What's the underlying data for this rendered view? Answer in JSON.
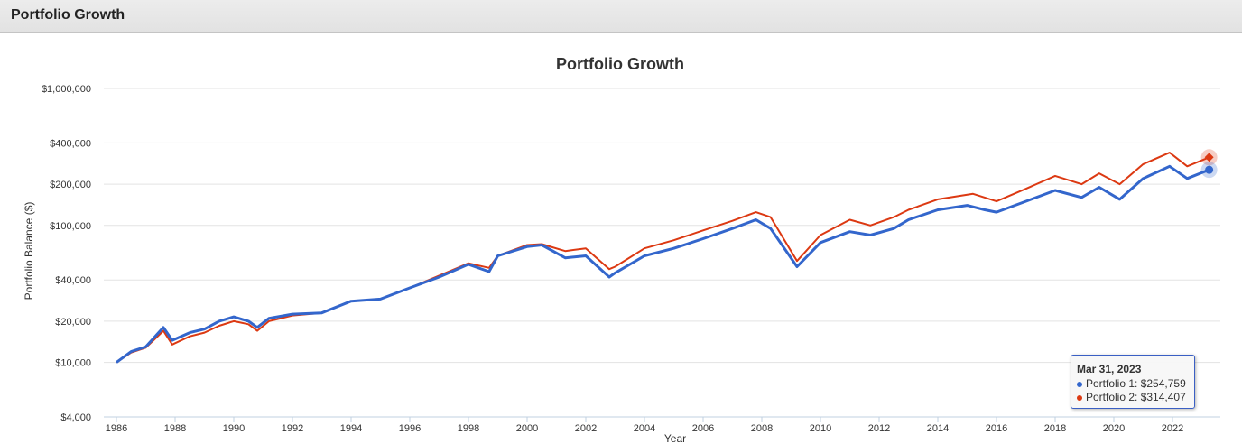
{
  "header": {
    "title": "Portfolio Growth"
  },
  "tooltip": {
    "date": "Mar 31, 2023",
    "lines": [
      "Portfolio 1: $254,759",
      "Portfolio 2: $314,407"
    ]
  },
  "chart_data": {
    "type": "line",
    "title": "Portfolio Growth",
    "xlabel": "Year",
    "ylabel": "Portfolio Balance ($)",
    "yscale": "log",
    "ylim": [
      4000,
      1000000
    ],
    "xlim": [
      1985.6,
      2023.6
    ],
    "y_ticks": [
      {
        "v": 1000000,
        "label": "$1,000,000"
      },
      {
        "v": 400000,
        "label": "$400,000"
      },
      {
        "v": 200000,
        "label": "$200,000"
      },
      {
        "v": 100000,
        "label": "$100,000"
      },
      {
        "v": 40000,
        "label": "$40,000"
      },
      {
        "v": 20000,
        "label": "$20,000"
      },
      {
        "v": 10000,
        "label": "$10,000"
      },
      {
        "v": 4000,
        "label": "$4,000"
      }
    ],
    "x_ticks": [
      "1986",
      "1988",
      "1990",
      "1992",
      "1994",
      "1996",
      "1998",
      "2000",
      "2002",
      "2004",
      "2006",
      "2008",
      "2010",
      "2012",
      "2014",
      "2016",
      "2018",
      "2020",
      "2022"
    ],
    "series": [
      {
        "name": "Portfolio 1",
        "color": "#3366cc",
        "points": [
          [
            1986.0,
            10000
          ],
          [
            1986.5,
            12000
          ],
          [
            1987.0,
            13000
          ],
          [
            1987.6,
            18000
          ],
          [
            1987.9,
            14500
          ],
          [
            1988.5,
            16500
          ],
          [
            1989.0,
            17500
          ],
          [
            1989.5,
            20000
          ],
          [
            1990.0,
            21500
          ],
          [
            1990.5,
            20000
          ],
          [
            1990.8,
            18000
          ],
          [
            1991.2,
            21000
          ],
          [
            1992.0,
            22500
          ],
          [
            1993.0,
            23000
          ],
          [
            1994.0,
            28000
          ],
          [
            1995.0,
            29000
          ],
          [
            1996.0,
            35000
          ],
          [
            1997.0,
            42000
          ],
          [
            1998.0,
            52000
          ],
          [
            1998.7,
            46000
          ],
          [
            1999.0,
            60000
          ],
          [
            2000.0,
            70000
          ],
          [
            2000.5,
            72000
          ],
          [
            2001.3,
            58000
          ],
          [
            2002.0,
            60000
          ],
          [
            2002.8,
            42000
          ],
          [
            2003.0,
            45000
          ],
          [
            2004.0,
            60000
          ],
          [
            2005.0,
            68000
          ],
          [
            2006.0,
            80000
          ],
          [
            2007.0,
            95000
          ],
          [
            2007.8,
            110000
          ],
          [
            2008.3,
            95000
          ],
          [
            2009.2,
            50000
          ],
          [
            2010.0,
            75000
          ],
          [
            2011.0,
            90000
          ],
          [
            2011.7,
            85000
          ],
          [
            2012.5,
            95000
          ],
          [
            2013.0,
            110000
          ],
          [
            2014.0,
            130000
          ],
          [
            2015.0,
            140000
          ],
          [
            2015.6,
            130000
          ],
          [
            2016.0,
            125000
          ],
          [
            2017.0,
            150000
          ],
          [
            2018.0,
            180000
          ],
          [
            2018.9,
            160000
          ],
          [
            2019.5,
            190000
          ],
          [
            2020.2,
            155000
          ],
          [
            2021.0,
            220000
          ],
          [
            2021.9,
            270000
          ],
          [
            2022.5,
            220000
          ],
          [
            2023.25,
            254759
          ]
        ]
      },
      {
        "name": "Portfolio 2",
        "color": "#dc3912",
        "points": [
          [
            1986.0,
            10000
          ],
          [
            1986.5,
            11800
          ],
          [
            1987.0,
            12800
          ],
          [
            1987.6,
            17000
          ],
          [
            1987.9,
            13500
          ],
          [
            1988.5,
            15500
          ],
          [
            1989.0,
            16500
          ],
          [
            1989.5,
            18500
          ],
          [
            1990.0,
            20000
          ],
          [
            1990.5,
            19000
          ],
          [
            1990.8,
            17000
          ],
          [
            1991.2,
            20000
          ],
          [
            1992.0,
            22000
          ],
          [
            1993.0,
            23000
          ],
          [
            1994.0,
            28000
          ],
          [
            1995.0,
            29000
          ],
          [
            1996.0,
            35000
          ],
          [
            1997.0,
            43000
          ],
          [
            1998.0,
            53000
          ],
          [
            1998.7,
            49000
          ],
          [
            1999.0,
            60000
          ],
          [
            2000.0,
            72000
          ],
          [
            2000.5,
            73000
          ],
          [
            2001.3,
            65000
          ],
          [
            2002.0,
            68000
          ],
          [
            2002.8,
            48000
          ],
          [
            2003.0,
            50000
          ],
          [
            2004.0,
            68000
          ],
          [
            2005.0,
            78000
          ],
          [
            2006.0,
            92000
          ],
          [
            2007.0,
            108000
          ],
          [
            2007.8,
            125000
          ],
          [
            2008.3,
            115000
          ],
          [
            2009.2,
            55000
          ],
          [
            2010.0,
            85000
          ],
          [
            2011.0,
            110000
          ],
          [
            2011.7,
            100000
          ],
          [
            2012.5,
            115000
          ],
          [
            2013.0,
            130000
          ],
          [
            2014.0,
            155000
          ],
          [
            2015.2,
            170000
          ],
          [
            2016.0,
            150000
          ],
          [
            2017.0,
            185000
          ],
          [
            2018.0,
            230000
          ],
          [
            2018.9,
            200000
          ],
          [
            2019.5,
            240000
          ],
          [
            2020.2,
            200000
          ],
          [
            2021.0,
            280000
          ],
          [
            2021.9,
            340000
          ],
          [
            2022.5,
            270000
          ],
          [
            2023.25,
            314407
          ]
        ]
      }
    ]
  }
}
